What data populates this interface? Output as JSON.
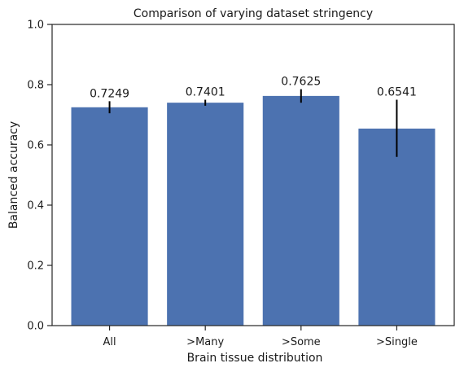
{
  "chart_data": {
    "type": "bar",
    "title": "Comparison of varying dataset stringency",
    "xlabel": "Brain tissue distribution",
    "ylabel": "Balanced accuracy",
    "categories": [
      "All",
      ">Many",
      ">Some",
      ">Single"
    ],
    "values": [
      0.7249,
      0.7401,
      0.7625,
      0.6541
    ],
    "value_labels": [
      "0.7249",
      "0.7401",
      "0.7625",
      "0.6541"
    ],
    "error_low": [
      0.705,
      0.73,
      0.74,
      0.56
    ],
    "error_high": [
      0.745,
      0.75,
      0.785,
      0.75
    ],
    "ylim": [
      0,
      1.0
    ],
    "yticks": [
      0.0,
      0.2,
      0.4,
      0.6,
      0.8,
      1.0
    ],
    "ytick_labels": [
      "0.0",
      "0.2",
      "0.4",
      "0.6",
      "0.8",
      "1.0"
    ],
    "grid": false,
    "bar_color": "#4c72b0",
    "error_color": "#000000"
  }
}
